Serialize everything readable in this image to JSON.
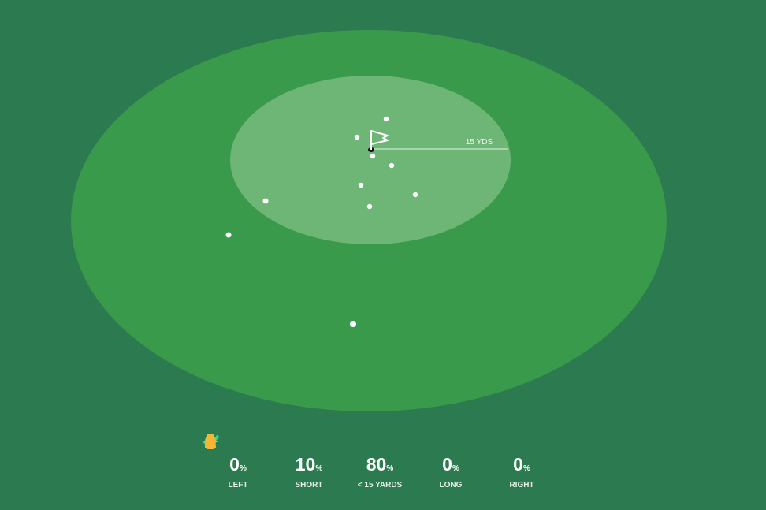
{
  "distance_label": "15 YDS",
  "stats": [
    {
      "value": 0,
      "unit": "%",
      "label": "LEFT"
    },
    {
      "value": 10,
      "unit": "%",
      "label": "SHORT"
    },
    {
      "value": 80,
      "unit": "%",
      "label": "< 15 YARDS"
    },
    {
      "value": 0,
      "unit": "%",
      "label": "LONG"
    },
    {
      "value": 0,
      "unit": "%",
      "label": "RIGHT"
    }
  ]
}
